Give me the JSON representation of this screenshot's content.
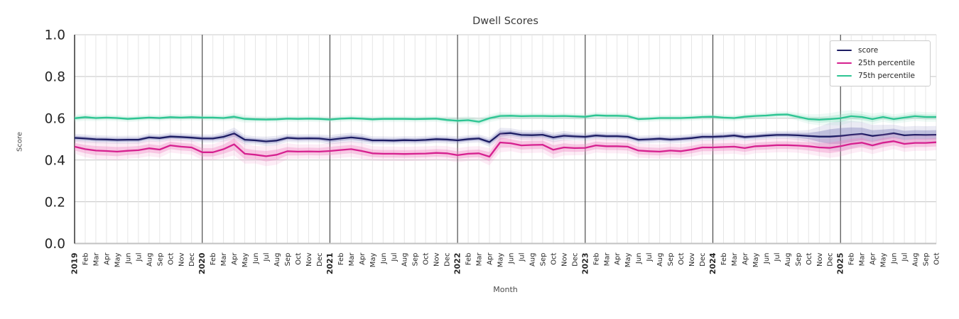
{
  "chart_data": {
    "type": "line",
    "title": "Dwell Scores",
    "xlabel": "Month",
    "ylabel": "Score",
    "ylim": [
      0.0,
      1.0
    ],
    "yticks": [
      0.0,
      0.2,
      0.4,
      0.6,
      0.8,
      1.0
    ],
    "grid": true,
    "legend_position": "upper right",
    "x_labels": [
      "2019",
      "Feb",
      "Mar",
      "Apr",
      "May",
      "Jun",
      "Jul",
      "Aug",
      "Sep",
      "Oct",
      "Nov",
      "Dec",
      "2020",
      "Feb",
      "Mar",
      "Apr",
      "May",
      "Jun",
      "Jul",
      "Aug",
      "Sep",
      "Oct",
      "Nov",
      "Dec",
      "2021",
      "Feb",
      "Mar",
      "Apr",
      "May",
      "Jun",
      "Jul",
      "Aug",
      "Sep",
      "Oct",
      "Nov",
      "Dec",
      "2022",
      "Feb",
      "Mar",
      "Apr",
      "May",
      "Jun",
      "Jul",
      "Aug",
      "Sep",
      "Oct",
      "Nov",
      "Dec",
      "2023",
      "Feb",
      "Mar",
      "Apr",
      "May",
      "Jun",
      "Jul",
      "Aug",
      "Sep",
      "Oct",
      "Nov",
      "Dec",
      "2024",
      "Feb",
      "Mar",
      "Apr",
      "May",
      "Jun",
      "Jul",
      "Aug",
      "Sep",
      "Oct",
      "Nov",
      "Dec",
      "2025",
      "Feb",
      "Mar",
      "Apr",
      "May",
      "Jun",
      "Jul",
      "Aug",
      "Sep",
      "Oct"
    ],
    "series": [
      {
        "name": "score",
        "color": "#1c1c63",
        "band_color": "#7a7ab8",
        "values": [
          0.506,
          0.503,
          0.499,
          0.498,
          0.496,
          0.497,
          0.497,
          0.508,
          0.505,
          0.512,
          0.51,
          0.507,
          0.503,
          0.503,
          0.511,
          0.527,
          0.497,
          0.494,
          0.489,
          0.493,
          0.506,
          0.503,
          0.504,
          0.503,
          0.497,
          0.503,
          0.508,
          0.503,
          0.494,
          0.494,
          0.493,
          0.495,
          0.494,
          0.496,
          0.5,
          0.498,
          0.494,
          0.5,
          0.503,
          0.486,
          0.526,
          0.529,
          0.52,
          0.519,
          0.521,
          0.508,
          0.516,
          0.513,
          0.511,
          0.517,
          0.514,
          0.514,
          0.511,
          0.497,
          0.499,
          0.502,
          0.498,
          0.501,
          0.505,
          0.511,
          0.511,
          0.513,
          0.517,
          0.51,
          0.513,
          0.517,
          0.52,
          0.52,
          0.518,
          0.515,
          0.512,
          0.512,
          0.515,
          0.521,
          0.525,
          0.515,
          0.521,
          0.528,
          0.518,
          0.521,
          0.52,
          0.521
        ],
        "band_halfwidth": [
          0.01,
          0.01,
          0.01,
          0.01,
          0.01,
          0.01,
          0.01,
          0.01,
          0.01,
          0.01,
          0.01,
          0.01,
          0.01,
          0.01,
          0.012,
          0.015,
          0.012,
          0.01,
          0.012,
          0.012,
          0.01,
          0.01,
          0.01,
          0.01,
          0.012,
          0.012,
          0.012,
          0.012,
          0.01,
          0.01,
          0.01,
          0.01,
          0.01,
          0.01,
          0.01,
          0.01,
          0.01,
          0.01,
          0.01,
          0.012,
          0.015,
          0.012,
          0.012,
          0.012,
          0.012,
          0.012,
          0.012,
          0.01,
          0.01,
          0.01,
          0.01,
          0.01,
          0.01,
          0.01,
          0.01,
          0.01,
          0.01,
          0.01,
          0.01,
          0.01,
          0.01,
          0.01,
          0.01,
          0.01,
          0.01,
          0.01,
          0.01,
          0.01,
          0.012,
          0.015,
          0.025,
          0.035,
          0.038,
          0.035,
          0.03,
          0.028,
          0.025,
          0.022,
          0.022,
          0.022,
          0.022,
          0.022
        ]
      },
      {
        "name": "25th percentile",
        "color": "#d6208f",
        "band_color": "#f08ac4",
        "values": [
          0.464,
          0.452,
          0.445,
          0.443,
          0.44,
          0.444,
          0.447,
          0.456,
          0.45,
          0.47,
          0.464,
          0.46,
          0.437,
          0.437,
          0.452,
          0.475,
          0.43,
          0.425,
          0.418,
          0.425,
          0.442,
          0.44,
          0.441,
          0.44,
          0.443,
          0.448,
          0.452,
          0.443,
          0.432,
          0.43,
          0.43,
          0.429,
          0.43,
          0.431,
          0.434,
          0.432,
          0.423,
          0.43,
          0.432,
          0.416,
          0.484,
          0.48,
          0.47,
          0.472,
          0.473,
          0.449,
          0.46,
          0.457,
          0.458,
          0.47,
          0.466,
          0.466,
          0.464,
          0.445,
          0.442,
          0.44,
          0.445,
          0.442,
          0.45,
          0.46,
          0.46,
          0.462,
          0.464,
          0.457,
          0.466,
          0.468,
          0.471,
          0.471,
          0.469,
          0.466,
          0.46,
          0.458,
          0.466,
          0.477,
          0.483,
          0.47,
          0.483,
          0.49,
          0.477,
          0.482,
          0.482,
          0.485
        ],
        "band_halfwidth": [
          0.018,
          0.02,
          0.022,
          0.022,
          0.022,
          0.02,
          0.02,
          0.02,
          0.02,
          0.018,
          0.018,
          0.018,
          0.02,
          0.02,
          0.022,
          0.028,
          0.025,
          0.022,
          0.025,
          0.025,
          0.02,
          0.018,
          0.018,
          0.018,
          0.02,
          0.02,
          0.02,
          0.02,
          0.018,
          0.018,
          0.018,
          0.018,
          0.018,
          0.018,
          0.018,
          0.018,
          0.018,
          0.018,
          0.018,
          0.022,
          0.025,
          0.02,
          0.02,
          0.02,
          0.02,
          0.022,
          0.02,
          0.018,
          0.018,
          0.018,
          0.018,
          0.018,
          0.018,
          0.018,
          0.018,
          0.018,
          0.018,
          0.018,
          0.018,
          0.018,
          0.018,
          0.018,
          0.018,
          0.018,
          0.018,
          0.018,
          0.018,
          0.018,
          0.018,
          0.02,
          0.022,
          0.025,
          0.026,
          0.024,
          0.022,
          0.022,
          0.022,
          0.02,
          0.02,
          0.02,
          0.02,
          0.02
        ]
      },
      {
        "name": "75th percentile",
        "color": "#2cc492",
        "band_color": "#93e3c6",
        "values": [
          0.6,
          0.605,
          0.601,
          0.603,
          0.601,
          0.597,
          0.6,
          0.603,
          0.601,
          0.605,
          0.603,
          0.605,
          0.603,
          0.603,
          0.601,
          0.607,
          0.597,
          0.595,
          0.594,
          0.595,
          0.598,
          0.597,
          0.598,
          0.597,
          0.594,
          0.598,
          0.6,
          0.598,
          0.595,
          0.597,
          0.597,
          0.597,
          0.596,
          0.597,
          0.598,
          0.592,
          0.588,
          0.591,
          0.583,
          0.6,
          0.611,
          0.612,
          0.61,
          0.611,
          0.611,
          0.61,
          0.611,
          0.609,
          0.607,
          0.614,
          0.612,
          0.612,
          0.61,
          0.596,
          0.598,
          0.601,
          0.601,
          0.601,
          0.603,
          0.606,
          0.607,
          0.603,
          0.601,
          0.607,
          0.611,
          0.613,
          0.617,
          0.618,
          0.607,
          0.596,
          0.593,
          0.596,
          0.6,
          0.61,
          0.606,
          0.596,
          0.606,
          0.596,
          0.603,
          0.61,
          0.606,
          0.606
        ],
        "band_halfwidth": [
          0.009,
          0.009,
          0.008,
          0.008,
          0.008,
          0.008,
          0.008,
          0.008,
          0.008,
          0.008,
          0.008,
          0.008,
          0.008,
          0.008,
          0.008,
          0.01,
          0.01,
          0.008,
          0.008,
          0.008,
          0.008,
          0.008,
          0.008,
          0.008,
          0.008,
          0.008,
          0.008,
          0.008,
          0.008,
          0.008,
          0.008,
          0.008,
          0.008,
          0.008,
          0.008,
          0.009,
          0.01,
          0.01,
          0.01,
          0.01,
          0.01,
          0.008,
          0.008,
          0.008,
          0.008,
          0.008,
          0.008,
          0.008,
          0.008,
          0.008,
          0.008,
          0.008,
          0.008,
          0.008,
          0.008,
          0.008,
          0.008,
          0.008,
          0.008,
          0.008,
          0.008,
          0.008,
          0.008,
          0.008,
          0.008,
          0.008,
          0.008,
          0.008,
          0.01,
          0.012,
          0.014,
          0.015,
          0.018,
          0.015,
          0.014,
          0.014,
          0.012,
          0.012,
          0.012,
          0.012,
          0.012,
          0.012
        ]
      }
    ],
    "colors": {
      "h_grid": "#cbcbcb",
      "month_grid": "#e3e3e3",
      "year_grid": "#3c3c3c",
      "left_spine": "#262626",
      "baseline": "#c2c2c2",
      "tick_label": "#262626"
    }
  }
}
